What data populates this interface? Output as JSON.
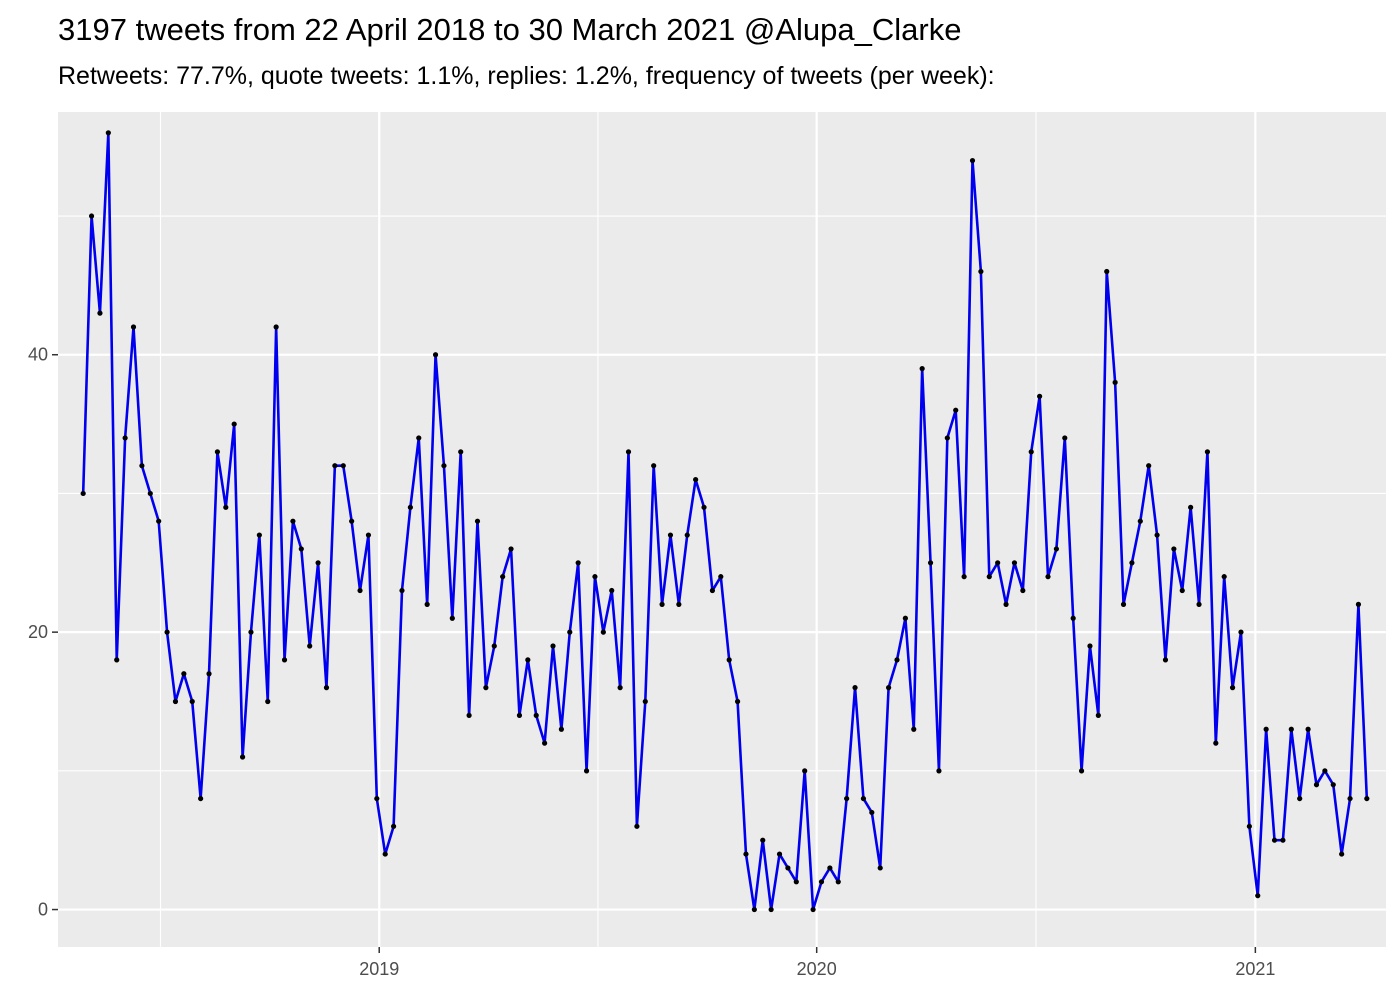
{
  "chart_data": {
    "type": "line",
    "title": "3197 tweets from 22 April 2018 to 30 March 2021 @Alupa_Clarke",
    "subtitle": "Retweets: 77.7%, quote tweets: 1.1%, replies: 1.2%, frequency of tweets (per week):",
    "xlabel": "",
    "ylabel": "",
    "x_start": "2018-04-29",
    "x_interval_days": 7,
    "xlim": [
      "2018-04-08",
      "2021-04-20"
    ],
    "ylim": [
      -2.7,
      57.5
    ],
    "x_ticks": [
      {
        "date": "2019-01-01",
        "label": "2019"
      },
      {
        "date": "2020-01-01",
        "label": "2020"
      },
      {
        "date": "2021-01-01",
        "label": "2021"
      }
    ],
    "y_ticks": [
      0,
      20,
      40
    ],
    "grid": true,
    "line_color": "#0000ee",
    "point_color": "#000000",
    "panel_color": "#ebebeb",
    "series": [
      {
        "values": [
          30,
          50,
          43,
          56,
          18,
          34,
          42,
          32,
          30,
          28,
          20,
          15,
          17,
          15,
          8,
          17,
          33,
          29,
          35,
          11,
          20,
          27,
          15,
          42,
          18,
          28,
          26,
          19,
          25,
          16,
          32,
          32,
          28,
          23,
          27,
          8,
          4,
          6,
          23,
          29,
          34,
          22,
          40,
          32,
          21,
          33,
          14,
          28,
          16,
          19,
          24,
          26,
          14,
          18,
          14,
          12,
          19,
          13,
          20,
          25,
          10,
          24,
          20,
          23,
          16,
          33,
          6,
          15,
          32,
          22,
          27,
          22,
          27,
          31,
          29,
          23,
          24,
          18,
          15,
          4,
          0,
          5,
          0,
          4,
          3,
          2,
          10,
          0,
          2,
          3,
          2,
          8,
          16,
          8,
          7,
          3,
          16,
          18,
          21,
          13,
          39,
          25,
          10,
          34,
          36,
          24,
          54,
          46,
          24,
          25,
          22,
          25,
          23,
          33,
          37,
          24,
          26,
          34,
          21,
          10,
          19,
          14,
          46,
          38,
          22,
          25,
          28,
          32,
          27,
          18,
          26,
          23,
          29,
          22,
          33,
          12,
          24,
          16,
          20,
          6,
          1,
          13,
          5,
          5,
          13,
          8,
          13,
          9,
          10,
          9,
          4,
          8,
          22,
          8
        ]
      }
    ]
  }
}
